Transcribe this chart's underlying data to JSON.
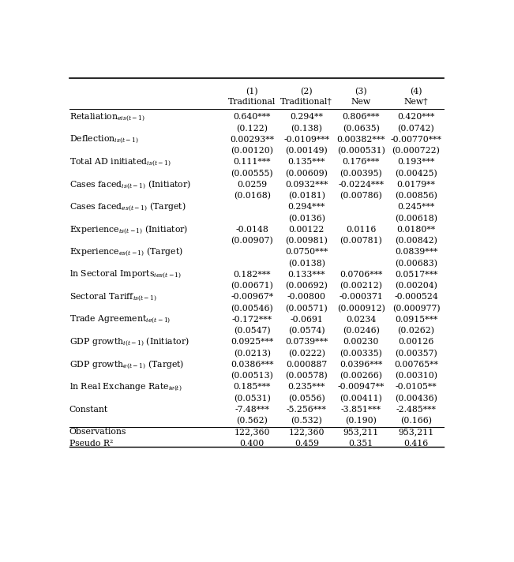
{
  "col_headers_line1": [
    "",
    "(1)",
    "(2)",
    "(3)",
    "(4)"
  ],
  "col_headers_line2": [
    "",
    "Traditional",
    "Traditional†",
    "New",
    "New†"
  ],
  "rows": [
    [
      "Retaliation$_{eis(t-1)}$",
      "0.640***",
      "0.294**",
      "0.806***",
      "0.420***"
    ],
    [
      "",
      "(0.122)",
      "(0.138)",
      "(0.0635)",
      "(0.0742)"
    ],
    [
      "Deflection$_{is(t-1)}$",
      "0.00293**",
      "-0.0109***",
      "0.00382***",
      "-0.00770***"
    ],
    [
      "",
      "(0.00120)",
      "(0.00149)",
      "(0.000531)",
      "(0.000722)"
    ],
    [
      "Total AD initiated$_{is(t-1)}$",
      "0.111***",
      "0.135***",
      "0.176***",
      "0.193***"
    ],
    [
      "",
      "(0.00555)",
      "(0.00609)",
      "(0.00395)",
      "(0.00425)"
    ],
    [
      "Cases faced$_{is(t-1)}$ (Initiator)",
      "0.0259",
      "0.0932***",
      "-0.0224***",
      "0.0179**"
    ],
    [
      "",
      "(0.0168)",
      "(0.0181)",
      "(0.00786)",
      "(0.00856)"
    ],
    [
      "Cases faced$_{es(t-1)}$ (Target)",
      "",
      "0.294***",
      "",
      "0.245***"
    ],
    [
      "",
      "",
      "(0.0136)",
      "",
      "(0.00618)"
    ],
    [
      "Experience$_{is(t-1)}$ (Initiator)",
      "-0.0148",
      "0.00122",
      "0.0116",
      "0.0180**"
    ],
    [
      "",
      "(0.00907)",
      "(0.00981)",
      "(0.00781)",
      "(0.00842)"
    ],
    [
      "Experience$_{es(t-1)}$ (Target)",
      "",
      "0.0750***",
      "",
      "0.0839***"
    ],
    [
      "",
      "",
      "(0.0138)",
      "",
      "(0.00683)"
    ],
    [
      "ln Sectoral Imports$_{ies(t-1)}$",
      "0.182***",
      "0.133***",
      "0.0706***",
      "0.0517***"
    ],
    [
      "",
      "(0.00671)",
      "(0.00692)",
      "(0.00212)",
      "(0.00204)"
    ],
    [
      "Sectoral Tariff$_{is(t-1)}$",
      "-0.00967*",
      "-0.00800",
      "-0.000371",
      "-0.000524"
    ],
    [
      "",
      "(0.00546)",
      "(0.00571)",
      "(0.000912)",
      "(0.000977)"
    ],
    [
      "Trade Agreement$_{ie(t-1)}$",
      "-0.172***",
      "-0.0691",
      "0.0234",
      "0.0915***"
    ],
    [
      "",
      "(0.0547)",
      "(0.0574)",
      "(0.0246)",
      "(0.0262)"
    ],
    [
      "GDP growth$_{i(t-1)}$ (Initiator)",
      "0.0925***",
      "0.0739***",
      "0.00230",
      "0.00126"
    ],
    [
      "",
      "(0.0213)",
      "(0.0222)",
      "(0.00335)",
      "(0.00357)"
    ],
    [
      "GDP growth$_{e(t-1)}$ (Target)",
      "0.0386***",
      "0.000887",
      "0.0396***",
      "0.00765**"
    ],
    [
      "",
      "(0.00513)",
      "(0.00578)",
      "(0.00266)",
      "(0.00310)"
    ],
    [
      "ln Real Exchange Rate$_{ie(t)}$",
      "0.185***",
      "0.235***",
      "-0.00947**",
      "-0.0105**"
    ],
    [
      "",
      "(0.0531)",
      "(0.0556)",
      "(0.00411)",
      "(0.00436)"
    ],
    [
      "Constant",
      "-7.48***",
      "-5.256***",
      "-3.851***",
      "-2.485***"
    ],
    [
      "",
      "(0.562)",
      "(0.532)",
      "(0.190)",
      "(0.166)"
    ],
    [
      "Observations",
      "122,360",
      "122,360",
      "953,211",
      "953,211"
    ],
    [
      "Pseudo R²",
      "0.400",
      "0.459",
      "0.351",
      "0.416"
    ]
  ],
  "background_color": "#ffffff",
  "text_color": "#000000",
  "font_size": 7.8,
  "sub_font_size": 6.0
}
